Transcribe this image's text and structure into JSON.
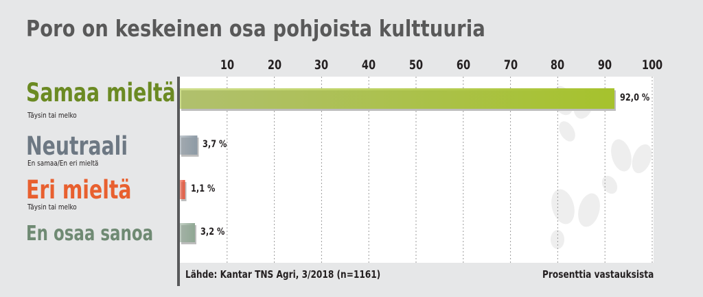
{
  "title": "Poro on keskeinen osa pohjoista kulttuuria",
  "chart_data": {
    "type": "bar",
    "orientation": "horizontal",
    "title": "Poro on keskeinen osa pohjoista kulttuuria",
    "categories": [
      "Samaa mieltä",
      "Neutraali",
      "Eri mieltä",
      "En osaa sanoa"
    ],
    "subtitles": [
      "Täysin tai melko",
      "En samaa/En eri mieltä",
      "Täysin tai melko",
      ""
    ],
    "values": [
      92.0,
      3.7,
      1.1,
      3.2
    ],
    "value_labels": [
      "92,0 %",
      "3,7 %",
      "1,1 %",
      "3,2 %"
    ],
    "ticks": [
      "10",
      "20",
      "30",
      "40",
      "50",
      "60",
      "70",
      "80",
      "90",
      "100"
    ],
    "xlim": [
      0,
      100
    ],
    "grid": true,
    "colors": [
      "#a6c22d",
      "#8d9aa5",
      "#e8583d",
      "#90a894"
    ],
    "label_colors": [
      "#6b8a23",
      "#6d7883",
      "#e8602f",
      "#6f8a73"
    ]
  },
  "footer": {
    "source": "Lähde: Kantar TNS Agri, 3/2018 (n=1161)",
    "unit": "Prosenttia vastauksista"
  }
}
